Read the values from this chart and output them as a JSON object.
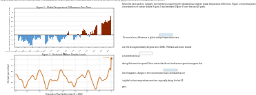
{
  "page_bg": "#ffffff",
  "top_text": "The figures below show the levels of greenhouse gases in the atmosphere and changes in global mean surface temperatures over time. Use these figures to identify the patterns within and relationships between the data sets.",
  "right_header": "Select the best words to complete the statements explaining the relationships between global temperature differences (Figure 1) and atmospheric\nconcentrations of carbon dioxide (Figure 2) and methane (Figure 3) over the past 40 years.",
  "fig1_title": "Figure 1 - Global Temperature Differences Over Time",
  "fig1_xlabel": "Year",
  "fig1_ylabel": "Global Temperature Anomaly (C) compared to 1901-2000",
  "fig1_yticks": [
    1.0,
    0.8,
    0.6,
    0.4,
    0.2,
    0.0,
    -0.2,
    -0.4
  ],
  "fig1_xticks": [
    1870,
    1880,
    1890,
    1900,
    1910,
    1920,
    1930,
    1940,
    1950,
    1960,
    1970,
    1980,
    1990,
    2000
  ],
  "fig1_note": "*Anomaly means difference; Data Source: NOAA Climate Graphing Tools",
  "fig2_title": "Figure 2 - Historical Carbon Dioxide Levels",
  "fig2_ylabel": "CO₂ (parts per million)",
  "fig2_xlabel": "Thousands of Years before today (0 = 1950)",
  "fig2_yticks": [
    180,
    220,
    260,
    300,
    340,
    380
  ],
  "fig2_xticks": [
    400,
    350,
    300,
    250,
    200,
    150,
    100,
    50,
    0
  ],
  "fig2_label_high": "HIGHEST HISTORICAL CO₂ LEVEL",
  "fig2_label_current": "CURRENT",
  "bar_color_neg": "#5b9bd5",
  "bar_color_pos": "#8b2500",
  "line_color": "#c05a00",
  "stmt1": "The anomalies or differences in global surface temperatures have",
  "stmt2": "over the last approximately 40 years (since 1980).  Methane and carbon dioxide",
  "stmt3": "concentrations have",
  "stmt4": "during that same time period. Since carbon dioxide and methane are greenhouse gases that",
  "stmt5": "the atmosphere, changes in their concentration have contributed to a(n)",
  "stmt6": "in global surface temperatures over time, especially during the last 40",
  "stmt7": "years.",
  "blank_color": "#cce4f7",
  "check_color": "#2e7d32"
}
